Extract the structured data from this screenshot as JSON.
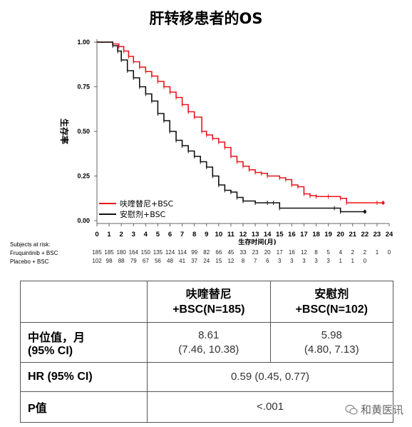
{
  "title": "肝转移患者的OS",
  "chart_data": {
    "type": "line",
    "subtype": "kaplan-meier",
    "xlabel": "生存时间(月)",
    "ylabel": "生存率",
    "xlim": [
      0,
      24
    ],
    "ylim": [
      0,
      1.0
    ],
    "x_ticks": [
      "0",
      "1",
      "2",
      "3",
      "4",
      "5",
      "6",
      "7",
      "8",
      "9",
      "10",
      "11",
      "12",
      "13",
      "14",
      "15",
      "16",
      "17",
      "18",
      "19",
      "20",
      "21",
      "22",
      "23",
      "24"
    ],
    "y_ticks": [
      "0.00",
      "0.25",
      "0.50",
      "0.75",
      "1.00"
    ],
    "legend_position": "bottom-left",
    "series": [
      {
        "name": "呋喹替尼+BSC",
        "color": "#e8141b",
        "points": [
          [
            0,
            1.0
          ],
          [
            1,
            1.0
          ],
          [
            1.3,
            0.99
          ],
          [
            1.8,
            0.975
          ],
          [
            2.2,
            0.95
          ],
          [
            2.6,
            0.92
          ],
          [
            3.0,
            0.89
          ],
          [
            3.5,
            0.86
          ],
          [
            4.0,
            0.835
          ],
          [
            4.5,
            0.81
          ],
          [
            5.0,
            0.78
          ],
          [
            5.5,
            0.75
          ],
          [
            6.0,
            0.72
          ],
          [
            6.5,
            0.69
          ],
          [
            7.0,
            0.65
          ],
          [
            7.5,
            0.61
          ],
          [
            8.0,
            0.58
          ],
          [
            8.61,
            0.5
          ],
          [
            9.0,
            0.48
          ],
          [
            9.5,
            0.46
          ],
          [
            10.0,
            0.44
          ],
          [
            10.5,
            0.41
          ],
          [
            11.0,
            0.36
          ],
          [
            11.5,
            0.33
          ],
          [
            12.0,
            0.305
          ],
          [
            12.5,
            0.285
          ],
          [
            13.0,
            0.27
          ],
          [
            13.5,
            0.265
          ],
          [
            14.0,
            0.25
          ],
          [
            15.0,
            0.24
          ],
          [
            15.5,
            0.23
          ],
          [
            16.0,
            0.2
          ],
          [
            16.5,
            0.19
          ],
          [
            17.0,
            0.15
          ],
          [
            17.5,
            0.14
          ],
          [
            18.0,
            0.135
          ],
          [
            19.0,
            0.135
          ],
          [
            20.0,
            0.125
          ],
          [
            20.5,
            0.1
          ],
          [
            23.0,
            0.1
          ],
          [
            23.5,
            0.1
          ]
        ]
      },
      {
        "name": "安慰剂+BSC",
        "color": "#111111",
        "points": [
          [
            0,
            1.0
          ],
          [
            1,
            1.0
          ],
          [
            1.3,
            0.98
          ],
          [
            1.7,
            0.95
          ],
          [
            2.0,
            0.9
          ],
          [
            2.5,
            0.84
          ],
          [
            3.0,
            0.8
          ],
          [
            3.5,
            0.75
          ],
          [
            4.0,
            0.71
          ],
          [
            4.5,
            0.67
          ],
          [
            5.0,
            0.6
          ],
          [
            5.5,
            0.56
          ],
          [
            5.98,
            0.5
          ],
          [
            6.5,
            0.45
          ],
          [
            7.0,
            0.42
          ],
          [
            7.5,
            0.39
          ],
          [
            8.0,
            0.36
          ],
          [
            8.5,
            0.33
          ],
          [
            9.0,
            0.3
          ],
          [
            9.5,
            0.25
          ],
          [
            10.0,
            0.2
          ],
          [
            10.5,
            0.17
          ],
          [
            11.0,
            0.16
          ],
          [
            11.5,
            0.13
          ],
          [
            12.0,
            0.11
          ],
          [
            13.0,
            0.1
          ],
          [
            14.0,
            0.1
          ],
          [
            14.5,
            0.1
          ],
          [
            15.0,
            0.07
          ],
          [
            19.5,
            0.07
          ],
          [
            20.0,
            0.05
          ],
          [
            22.0,
            0.05
          ]
        ]
      }
    ],
    "risk_table": {
      "header": "Subjects at risk:",
      "rows": [
        {
          "label": "Fruquintinib + BSC",
          "values": [
            "185",
            "185",
            "180",
            "164",
            "150",
            "135",
            "124",
            "114",
            "99",
            "82",
            "66",
            "45",
            "33",
            "23",
            "20",
            "17",
            "16",
            "12",
            "8",
            "5",
            "4",
            "2",
            "2",
            "1",
            "0"
          ]
        },
        {
          "label": "Placebo + BSC",
          "values": [
            "102",
            "98",
            "88",
            "79",
            "67",
            "56",
            "48",
            "41",
            "37",
            "24",
            "15",
            "12",
            "8",
            "7",
            "6",
            "3",
            "3",
            "3",
            "3",
            "3",
            "1",
            "1",
            "0",
            "",
            ""
          ]
        }
      ]
    }
  },
  "table": {
    "col1": "呋喹替尼\n+BSC(N=185)",
    "col2": "安慰剂\n+BSC(N=102)",
    "rows": [
      {
        "label": "中位值，月\n(95% CI)",
        "v1": "8.61\n(7.46, 10.38)",
        "v2": "5.98\n(4.80, 7.13)"
      },
      {
        "label": "HR (95% CI)",
        "v": "0.59 (0.45, 0.77)"
      },
      {
        "label": "P值",
        "v": "<.001"
      }
    ]
  },
  "watermark": "和黄医讯"
}
